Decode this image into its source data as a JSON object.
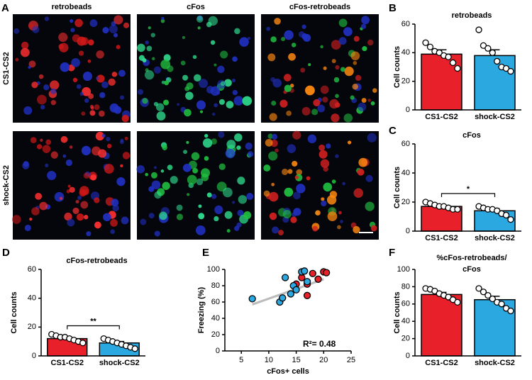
{
  "images": {
    "panel": "A",
    "columns": [
      "retrobeads",
      "cFos",
      "cFos-retrobeads"
    ],
    "rows": [
      "CS1-CS2",
      "shock-CS2"
    ]
  },
  "chart_data": [
    {
      "panel": "B",
      "type": "bar",
      "title": [
        "retrobeads"
      ],
      "ylabel": "Cell counts",
      "categories": [
        "CS1-CS2",
        "shock-CS2"
      ],
      "colors": [
        "#e8202a",
        "#2ba8e0"
      ],
      "values": [
        39,
        38
      ],
      "errors": [
        3,
        4
      ],
      "points": [
        [
          47,
          44,
          41,
          40,
          38,
          37,
          33,
          29
        ],
        [
          56,
          45,
          43,
          40,
          34,
          30,
          29,
          27
        ]
      ],
      "ylim": [
        0,
        60
      ],
      "yticks": [
        0,
        20,
        40,
        60
      ]
    },
    {
      "panel": "C",
      "type": "bar",
      "title": [
        "cFos"
      ],
      "ylabel": "Cell counts",
      "categories": [
        "CS1-CS2",
        "shock-CS2"
      ],
      "colors": [
        "#e8202a",
        "#2ba8e0"
      ],
      "values": [
        17,
        14
      ],
      "errors": [
        1,
        1.5
      ],
      "points": [
        [
          20,
          19,
          18,
          17,
          17,
          16,
          15,
          15
        ],
        [
          17,
          16,
          15,
          15,
          14,
          12,
          11,
          8
        ]
      ],
      "significance": "*",
      "ylim": [
        0,
        60
      ],
      "yticks": [
        0,
        20,
        40,
        60
      ]
    },
    {
      "panel": "D",
      "type": "bar",
      "title": [
        "cFos-retrobeads"
      ],
      "ylabel": "Cell counts",
      "categories": [
        "CS1-CS2",
        "shock-CS2"
      ],
      "colors": [
        "#e8202a",
        "#2ba8e0"
      ],
      "values": [
        12,
        9
      ],
      "errors": [
        1,
        1
      ],
      "points": [
        [
          15,
          14,
          13,
          13,
          12,
          11,
          10,
          9
        ],
        [
          12,
          11,
          10,
          9,
          8,
          7,
          6,
          5
        ]
      ],
      "significance": "**",
      "ylim": [
        0,
        60
      ],
      "yticks": [
        0,
        20,
        40,
        60
      ]
    },
    {
      "panel": "E",
      "type": "scatter",
      "xlabel": "cFos+ cells",
      "ylabel": "Freezing (%)",
      "series": [
        {
          "name": "CS1-CS2",
          "color": "#e8202a",
          "x": [
            15,
            16,
            17,
            17,
            18,
            19,
            20,
            20.5
          ],
          "values": [
            82,
            90,
            82,
            68,
            95,
            88,
            97,
            96
          ]
        },
        {
          "name": "shock-CS2",
          "color": "#2ba8e0",
          "x": [
            7,
            12,
            12.5,
            13,
            14,
            14.5,
            15,
            16,
            16.5,
            17
          ],
          "values": [
            64,
            60,
            65,
            90,
            70,
            80,
            75,
            97,
            98,
            85
          ]
        }
      ],
      "fit": {
        "x": [
          7,
          20
        ],
        "values": [
          57,
          88
        ]
      },
      "annotation": "R²= 0.48",
      "xlim": [
        2,
        25
      ],
      "xticks": [
        5,
        10,
        15,
        20,
        25
      ],
      "ylim": [
        0,
        100
      ],
      "yticks": [
        0,
        20,
        40,
        60,
        80,
        100
      ]
    },
    {
      "panel": "F",
      "type": "bar",
      "title": [
        "%cFos-retrobeads/",
        "cFos"
      ],
      "ylabel": "Cell counts",
      "categories": [
        "CS1-CS2",
        "shock-CS2"
      ],
      "colors": [
        "#e8202a",
        "#2ba8e0"
      ],
      "values": [
        71,
        65
      ],
      "errors": [
        2.5,
        4
      ],
      "points": [
        [
          78,
          77,
          75,
          72,
          70,
          68,
          65,
          62
        ],
        [
          78,
          74,
          70,
          66,
          62,
          60,
          55,
          52
        ]
      ],
      "ylim": [
        0,
        100
      ],
      "yticks": [
        0,
        20,
        40,
        60,
        80,
        100
      ]
    }
  ]
}
